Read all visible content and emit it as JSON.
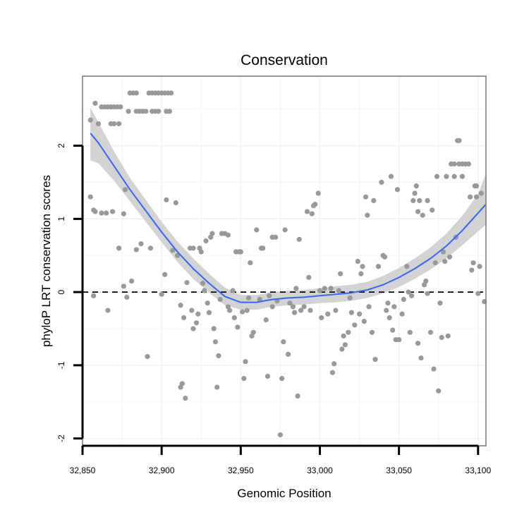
{
  "chart_data": {
    "type": "scatter",
    "title": "Conservation",
    "xlabel": "Genomic Position",
    "ylabel": "phyloP LRT conservation scores",
    "xlim": [
      32850,
      33105
    ],
    "ylim": [
      -2.1,
      2.95
    ],
    "x_ticks": [
      32850,
      32900,
      32950,
      33000,
      33050,
      33100
    ],
    "x_tick_labels": [
      "32,850",
      "32,900",
      "32,950",
      "33,000",
      "33,050",
      "33,100"
    ],
    "y_ticks": [
      -2,
      -1,
      0,
      1,
      2
    ],
    "y_tick_labels": [
      "-2",
      "-1",
      "0",
      "1",
      "2"
    ],
    "reference_line_y": 0,
    "colors": {
      "points": "#999999",
      "smooth": "#3366ff",
      "band": "#d3d3d3",
      "panel_border": "#7f7f7f",
      "grid": "#f2f2f2"
    },
    "points": [
      [
        32855,
        2.35
      ],
      [
        32855,
        1.3
      ],
      [
        32857,
        1.12
      ],
      [
        32858,
        1.1
      ],
      [
        32857,
        -0.05
      ],
      [
        32858,
        2.58
      ],
      [
        32860,
        2.3
      ],
      [
        32862,
        2.53
      ],
      [
        32864,
        2.53
      ],
      [
        32866,
        2.53
      ],
      [
        32868,
        2.53
      ],
      [
        32870,
        2.53
      ],
      [
        32872,
        2.53
      ],
      [
        32874,
        2.53
      ],
      [
        32862,
        1.08
      ],
      [
        32865,
        1.08
      ],
      [
        32869,
        1.1
      ],
      [
        32866,
        -0.25
      ],
      [
        32868,
        2.3
      ],
      [
        32870,
        2.3
      ],
      [
        32873,
        2.3
      ],
      [
        32873,
        0.6
      ],
      [
        32876,
        0.08
      ],
      [
        32877,
        1.4
      ],
      [
        32876,
        1.07
      ],
      [
        32878,
        -0.07
      ],
      [
        32879,
        2.47
      ],
      [
        32880,
        2.72
      ],
      [
        32882,
        2.72
      ],
      [
        32884,
        2.72
      ],
      [
        32881,
        0.15
      ],
      [
        32884,
        2.47
      ],
      [
        32886,
        2.47
      ],
      [
        32888,
        2.47
      ],
      [
        32890,
        2.47
      ],
      [
        32884,
        0.58
      ],
      [
        32887,
        0.66
      ],
      [
        32891,
        -0.88
      ],
      [
        32892,
        2.72
      ],
      [
        32894,
        2.72
      ],
      [
        32896,
        2.72
      ],
      [
        32898,
        2.72
      ],
      [
        32900,
        2.72
      ],
      [
        32902,
        2.72
      ],
      [
        32904,
        2.72
      ],
      [
        32906,
        2.72
      ],
      [
        32893,
        0.6
      ],
      [
        32894,
        2.47
      ],
      [
        32896,
        2.47
      ],
      [
        32898,
        2.47
      ],
      [
        32900,
        -0.03
      ],
      [
        32902,
        0.24
      ],
      [
        32903,
        1.26
      ],
      [
        32903,
        2.47
      ],
      [
        32905,
        2.47
      ],
      [
        32907,
        0.57
      ],
      [
        32909,
        1.22
      ],
      [
        32910,
        0.5
      ],
      [
        32912,
        -1.3
      ],
      [
        32912,
        -0.18
      ],
      [
        32913,
        -1.25
      ],
      [
        32914,
        -0.35
      ],
      [
        32915,
        -1.45
      ],
      [
        32916,
        0.13
      ],
      [
        32918,
        0.6
      ],
      [
        32919,
        -0.25
      ],
      [
        32920,
        -0.5
      ],
      [
        32920,
        0.6
      ],
      [
        32922,
        -0.42
      ],
      [
        32923,
        -0.3
      ],
      [
        32924,
        0.6
      ],
      [
        32925,
        0.55
      ],
      [
        32926,
        0.12
      ],
      [
        32927,
        0.02
      ],
      [
        32928,
        0.7
      ],
      [
        32929,
        -0.15
      ],
      [
        32930,
        -0.28
      ],
      [
        32931,
        0.75
      ],
      [
        32932,
        0.8
      ],
      [
        32933,
        -0.5
      ],
      [
        32934,
        -0.68
      ],
      [
        32935,
        -1.3
      ],
      [
        32936,
        -0.87
      ],
      [
        32937,
        -0.1
      ],
      [
        32938,
        0.8
      ],
      [
        32940,
        0.8
      ],
      [
        32942,
        0.78
      ],
      [
        32942,
        -0.2
      ],
      [
        32943,
        -0.25
      ],
      [
        32945,
        0.02
      ],
      [
        32946,
        -0.35
      ],
      [
        32947,
        0.55
      ],
      [
        32948,
        -0.48
      ],
      [
        32949,
        0.55
      ],
      [
        32950,
        0.55
      ],
      [
        32951,
        -0.27
      ],
      [
        32952,
        -1.18
      ],
      [
        32953,
        -0.95
      ],
      [
        32954,
        -0.25
      ],
      [
        32955,
        -0.08
      ],
      [
        32956,
        0.4
      ],
      [
        32957,
        -0.6
      ],
      [
        32958,
        -0.55
      ],
      [
        32960,
        0.85
      ],
      [
        32962,
        -0.1
      ],
      [
        32963,
        0.6
      ],
      [
        32964,
        0.6
      ],
      [
        32966,
        -0.38
      ],
      [
        32967,
        -1.15
      ],
      [
        32968,
        -0.05
      ],
      [
        32970,
        -0.2
      ],
      [
        32970,
        0.75
      ],
      [
        32972,
        0.75
      ],
      [
        32973,
        -0.12
      ],
      [
        32975,
        -1.95
      ],
      [
        32976,
        -1.18
      ],
      [
        32977,
        -0.68
      ],
      [
        32978,
        0.85
      ],
      [
        32980,
        -0.85
      ],
      [
        32981,
        -0.15
      ],
      [
        32983,
        -0.2
      ],
      [
        32984,
        -0.28
      ],
      [
        32985,
        0.05
      ],
      [
        32986,
        -1.42
      ],
      [
        32987,
        0.72
      ],
      [
        32988,
        -0.25
      ],
      [
        32990,
        -0.2
      ],
      [
        32992,
        1.1
      ],
      [
        32993,
        0.2
      ],
      [
        32994,
        -0.25
      ],
      [
        32995,
        1.07
      ],
      [
        32996,
        1.18
      ],
      [
        32997,
        1.2
      ],
      [
        32999,
        1.35
      ],
      [
        33000,
        0.02
      ],
      [
        33001,
        -0.35
      ],
      [
        33003,
        0.05
      ],
      [
        33005,
        -0.3
      ],
      [
        33007,
        0.05
      ],
      [
        33008,
        -1.1
      ],
      [
        33009,
        -0.98
      ],
      [
        33010,
        -0.25
      ],
      [
        33012,
        0.02
      ],
      [
        33013,
        0.25
      ],
      [
        33014,
        -0.78
      ],
      [
        33015,
        -0.6
      ],
      [
        33016,
        -0.72
      ],
      [
        33018,
        -0.55
      ],
      [
        33019,
        -0.08
      ],
      [
        33020,
        -0.28
      ],
      [
        33022,
        -0.45
      ],
      [
        33024,
        0.42
      ],
      [
        33025,
        -0.3
      ],
      [
        33026,
        0.25
      ],
      [
        33027,
        0.35
      ],
      [
        33028,
        -0.4
      ],
      [
        33029,
        1.3
      ],
      [
        33030,
        1.05
      ],
      [
        33031,
        -0.2
      ],
      [
        33033,
        -0.55
      ],
      [
        33034,
        1.25
      ],
      [
        33035,
        -0.92
      ],
      [
        33037,
        0.35
      ],
      [
        33039,
        1.5
      ],
      [
        33040,
        0.5
      ],
      [
        33041,
        0.48
      ],
      [
        33042,
        -0.25
      ],
      [
        33043,
        -0.15
      ],
      [
        33044,
        -0.35
      ],
      [
        33045,
        1.58
      ],
      [
        33046,
        -0.52
      ],
      [
        33047,
        -0.2
      ],
      [
        33048,
        -0.65
      ],
      [
        33049,
        1.4
      ],
      [
        33050,
        -0.65
      ],
      [
        33052,
        -0.3
      ],
      [
        33053,
        -0.1
      ],
      [
        33055,
        0.35
      ],
      [
        33056,
        0.0
      ],
      [
        33057,
        -0.55
      ],
      [
        33058,
        -0.05
      ],
      [
        33059,
        1.25
      ],
      [
        33060,
        1.35
      ],
      [
        33061,
        1.45
      ],
      [
        33062,
        -0.7
      ],
      [
        33062,
        1.1
      ],
      [
        33063,
        1.25
      ],
      [
        33064,
        -0.9
      ],
      [
        33065,
        1.05
      ],
      [
        33066,
        0.1
      ],
      [
        33067,
        0.15
      ],
      [
        33068,
        1.25
      ],
      [
        33068,
        -0.02
      ],
      [
        33070,
        -0.55
      ],
      [
        33071,
        1.12
      ],
      [
        33072,
        -1.05
      ],
      [
        33073,
        0.4
      ],
      [
        33074,
        1.58
      ],
      [
        33075,
        -1.35
      ],
      [
        33076,
        -0.15
      ],
      [
        33077,
        -0.62
      ],
      [
        33078,
        0.55
      ],
      [
        33079,
        0.42
      ],
      [
        33080,
        1.58
      ],
      [
        33081,
        -0.6
      ],
      [
        33082,
        0.48
      ],
      [
        33083,
        1.75
      ],
      [
        33085,
        1.75
      ],
      [
        33085,
        1.58
      ],
      [
        33086,
        0.75
      ],
      [
        33087,
        2.07
      ],
      [
        33088,
        2.07
      ],
      [
        33088,
        1.75
      ],
      [
        33090,
        1.75
      ],
      [
        33090,
        1.58
      ],
      [
        33092,
        1.75
      ],
      [
        33094,
        1.75
      ],
      [
        33095,
        1.3
      ],
      [
        33096,
        0.3
      ],
      [
        33097,
        0.4
      ],
      [
        33098,
        1.45
      ],
      [
        33099,
        1.45
      ],
      [
        33099,
        1.3
      ],
      [
        33100,
        -0.02
      ],
      [
        33101,
        0.35
      ],
      [
        33102,
        1.35
      ],
      [
        33104,
        -0.13
      ]
    ],
    "smooth_fit": [
      [
        32855,
        2.17
      ],
      [
        32860,
        2.04
      ],
      [
        32870,
        1.72
      ],
      [
        32880,
        1.4
      ],
      [
        32890,
        1.11
      ],
      [
        32900,
        0.82
      ],
      [
        32910,
        0.55
      ],
      [
        32920,
        0.32
      ],
      [
        32930,
        0.12
      ],
      [
        32940,
        -0.06
      ],
      [
        32950,
        -0.14
      ],
      [
        32960,
        -0.14
      ],
      [
        32970,
        -0.1
      ],
      [
        32980,
        -0.08
      ],
      [
        32990,
        -0.07
      ],
      [
        33000,
        -0.05
      ],
      [
        33010,
        -0.03
      ],
      [
        33020,
        -0.01
      ],
      [
        33030,
        0.03
      ],
      [
        33040,
        0.1
      ],
      [
        33050,
        0.2
      ],
      [
        33060,
        0.32
      ],
      [
        33070,
        0.46
      ],
      [
        33080,
        0.63
      ],
      [
        33090,
        0.84
      ],
      [
        33100,
        1.08
      ],
      [
        33105,
        1.2
      ]
    ],
    "confidence_band": [
      [
        32855,
        1.8,
        2.52
      ],
      [
        32860,
        1.76,
        2.32
      ],
      [
        32870,
        1.52,
        1.92
      ],
      [
        32880,
        1.24,
        1.56
      ],
      [
        32890,
        0.96,
        1.26
      ],
      [
        32900,
        0.68,
        0.96
      ],
      [
        32910,
        0.41,
        0.69
      ],
      [
        32920,
        0.18,
        0.46
      ],
      [
        32930,
        -0.01,
        0.25
      ],
      [
        32940,
        -0.18,
        0.06
      ],
      [
        32950,
        -0.24,
        -0.04
      ],
      [
        32960,
        -0.24,
        -0.04
      ],
      [
        32970,
        -0.2,
        0.0
      ],
      [
        32980,
        -0.18,
        0.02
      ],
      [
        32990,
        -0.17,
        0.03
      ],
      [
        33000,
        -0.15,
        0.05
      ],
      [
        33010,
        -0.14,
        0.08
      ],
      [
        33020,
        -0.12,
        0.1
      ],
      [
        33030,
        -0.08,
        0.14
      ],
      [
        33040,
        -0.02,
        0.22
      ],
      [
        33050,
        0.07,
        0.33
      ],
      [
        33060,
        0.18,
        0.46
      ],
      [
        33070,
        0.31,
        0.61
      ],
      [
        33080,
        0.46,
        0.8
      ],
      [
        33090,
        0.64,
        1.04
      ],
      [
        33100,
        0.83,
        1.34
      ],
      [
        33105,
        0.92,
        1.62
      ]
    ]
  }
}
